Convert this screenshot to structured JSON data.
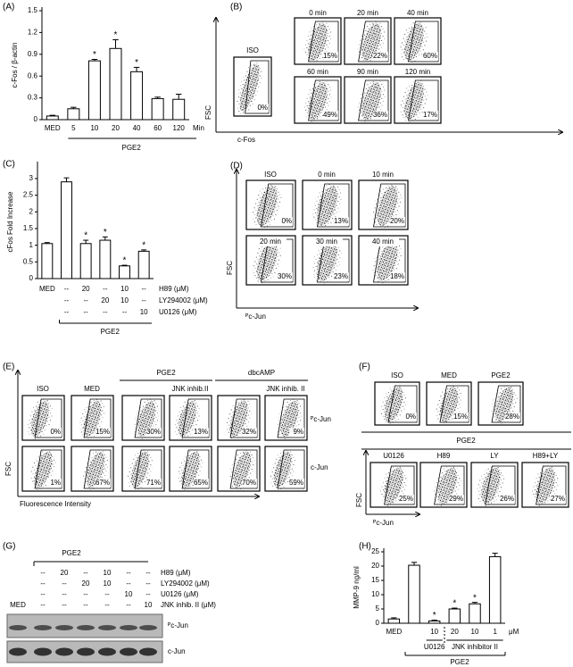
{
  "chart_data": [
    {
      "type": "bar",
      "title": "(A)",
      "y_label": "c-Fos / β-actin",
      "categories": [
        "MED",
        "5",
        "10",
        "20",
        "40",
        "60",
        "120"
      ],
      "x_unit": "Min",
      "group_label": "PGE2",
      "values": [
        0.05,
        0.15,
        0.81,
        0.98,
        0.66,
        0.29,
        0.28
      ],
      "errors": [
        0.01,
        0.02,
        0.02,
        0.12,
        0.06,
        0.02,
        0.07
      ],
      "sig": [
        null,
        null,
        "*",
        "*",
        "*",
        null,
        null
      ],
      "ylim": [
        0,
        1.5
      ],
      "yticks": [
        0,
        0.3,
        0.6,
        0.9,
        1.2,
        1.5
      ],
      "color": "#ffffff"
    },
    {
      "type": "bar",
      "title": "(C)",
      "y_label": "cFos Fold Increase",
      "values": [
        1.05,
        2.9,
        1.05,
        1.15,
        0.38,
        0.82
      ],
      "errors": [
        0.03,
        0.12,
        0.1,
        0.1,
        0.02,
        0.04
      ],
      "sig": [
        null,
        null,
        "*",
        "*",
        "*",
        "*"
      ],
      "ylim": [
        0,
        3.4
      ],
      "yticks": [
        0,
        0.5,
        1,
        1.5,
        2,
        2.5,
        3
      ],
      "color": "#ffffff",
      "treatments": {
        "rows": [
          [
            "MED",
            "--",
            "20",
            "--",
            "10",
            "--"
          ],
          [
            null,
            "--",
            "--",
            "20",
            "10",
            "--"
          ],
          [
            null,
            "--",
            "--",
            "--",
            "--",
            "10"
          ]
        ],
        "row_labels": [
          "H89 (μM)",
          "LY294002 (μM)",
          "U0126 (μM)"
        ]
      },
      "group_label": "PGE2"
    },
    {
      "type": "bar",
      "title": "(H)",
      "y_label": "MMP-9 ng/ml",
      "categories": [
        "MED",
        null,
        "10",
        "20",
        "10",
        "1"
      ],
      "x_unit": "μM",
      "values": [
        1.5,
        20.3,
        0.8,
        5.0,
        6.8,
        23.3
      ],
      "errors": [
        0.4,
        1.0,
        0.3,
        0.3,
        0.5,
        1.2
      ],
      "sig": [
        null,
        null,
        "*",
        "*",
        "*",
        null
      ],
      "ylim": [
        0,
        25
      ],
      "yticks": [
        0,
        5,
        10,
        15,
        20,
        25
      ],
      "color": "#ffffff",
      "subgroups": [
        "U0126",
        "JNK inhibitor II"
      ],
      "group_label": "PGE2"
    }
  ],
  "flow_b": {
    "title": "(B)",
    "y_label": "FSC",
    "x_label": "c-Fos",
    "plots": [
      {
        "label": "ISO",
        "percent": "0%"
      },
      {
        "label": "0 min",
        "percent": "15%"
      },
      {
        "label": "20 min",
        "percent": "22%"
      },
      {
        "label": "40 min",
        "percent": "60%"
      },
      {
        "label": "60 min",
        "percent": "49%"
      },
      {
        "label": "90 min",
        "percent": "36%"
      },
      {
        "label": "120 min",
        "percent": "17%"
      }
    ]
  },
  "flow_d": {
    "title": "(D)",
    "y_label": "FSC",
    "x_label": "ᴾc-Jun",
    "plots": [
      {
        "label": "ISO",
        "percent": "0%"
      },
      {
        "label": "0 min",
        "percent": "13%"
      },
      {
        "label": "10 min",
        "percent": "20%"
      },
      {
        "label": "20 min",
        "percent": "30%"
      },
      {
        "label": "30 min",
        "percent": "23%"
      },
      {
        "label": "40 min",
        "percent": "18%"
      }
    ]
  },
  "flow_e": {
    "title": "(E)",
    "y_label": "FSC",
    "x_label": "Fluorescence Intensity",
    "column_labels": [
      "ISO",
      "MED",
      null,
      "JNK inhib.II",
      null,
      "JNK inhib. II"
    ],
    "groups": [
      "PGE2",
      "dbcAMP"
    ],
    "row_labels": [
      "ᴾc-Jun",
      "c-Jun"
    ],
    "percents": [
      [
        "0%",
        "15%",
        "30%",
        "13%",
        "32%",
        "9%"
      ],
      [
        "1%",
        "67%",
        "71%",
        "65%",
        "70%",
        "59%"
      ]
    ]
  },
  "flow_f": {
    "title": "(F)",
    "y_label": "FSC",
    "x_label": "ᴾc-Jun",
    "group_label": "PGE2",
    "top": [
      {
        "label": "ISO",
        "percent": "0%"
      },
      {
        "label": "MED",
        "percent": "15%"
      },
      {
        "label": "PGE2",
        "percent": "28%"
      }
    ],
    "bottom": [
      {
        "label": "U0126",
        "percent": "25%"
      },
      {
        "label": "H89",
        "percent": "29%"
      },
      {
        "label": "LY",
        "percent": "26%"
      },
      {
        "label": "H89+LY",
        "percent": "27%"
      }
    ]
  },
  "blot_g": {
    "title": "(G)",
    "group_label": "PGE2",
    "rows": [
      [
        null,
        "--",
        "20",
        "--",
        "10",
        "--",
        "--"
      ],
      [
        null,
        "--",
        "--",
        "20",
        "10",
        "--",
        "--"
      ],
      [
        null,
        "--",
        "--",
        "--",
        "--",
        "10",
        "--"
      ],
      [
        "MED",
        "--",
        "--",
        "--",
        "--",
        "--",
        "10"
      ]
    ],
    "row_labels": [
      "H89 (μM)",
      "LY294002 (μM)",
      "U0126 (μM)",
      "JNK inhib. II (μM)"
    ],
    "bands": [
      "ᴾc-Jun",
      "c-Jun"
    ]
  }
}
